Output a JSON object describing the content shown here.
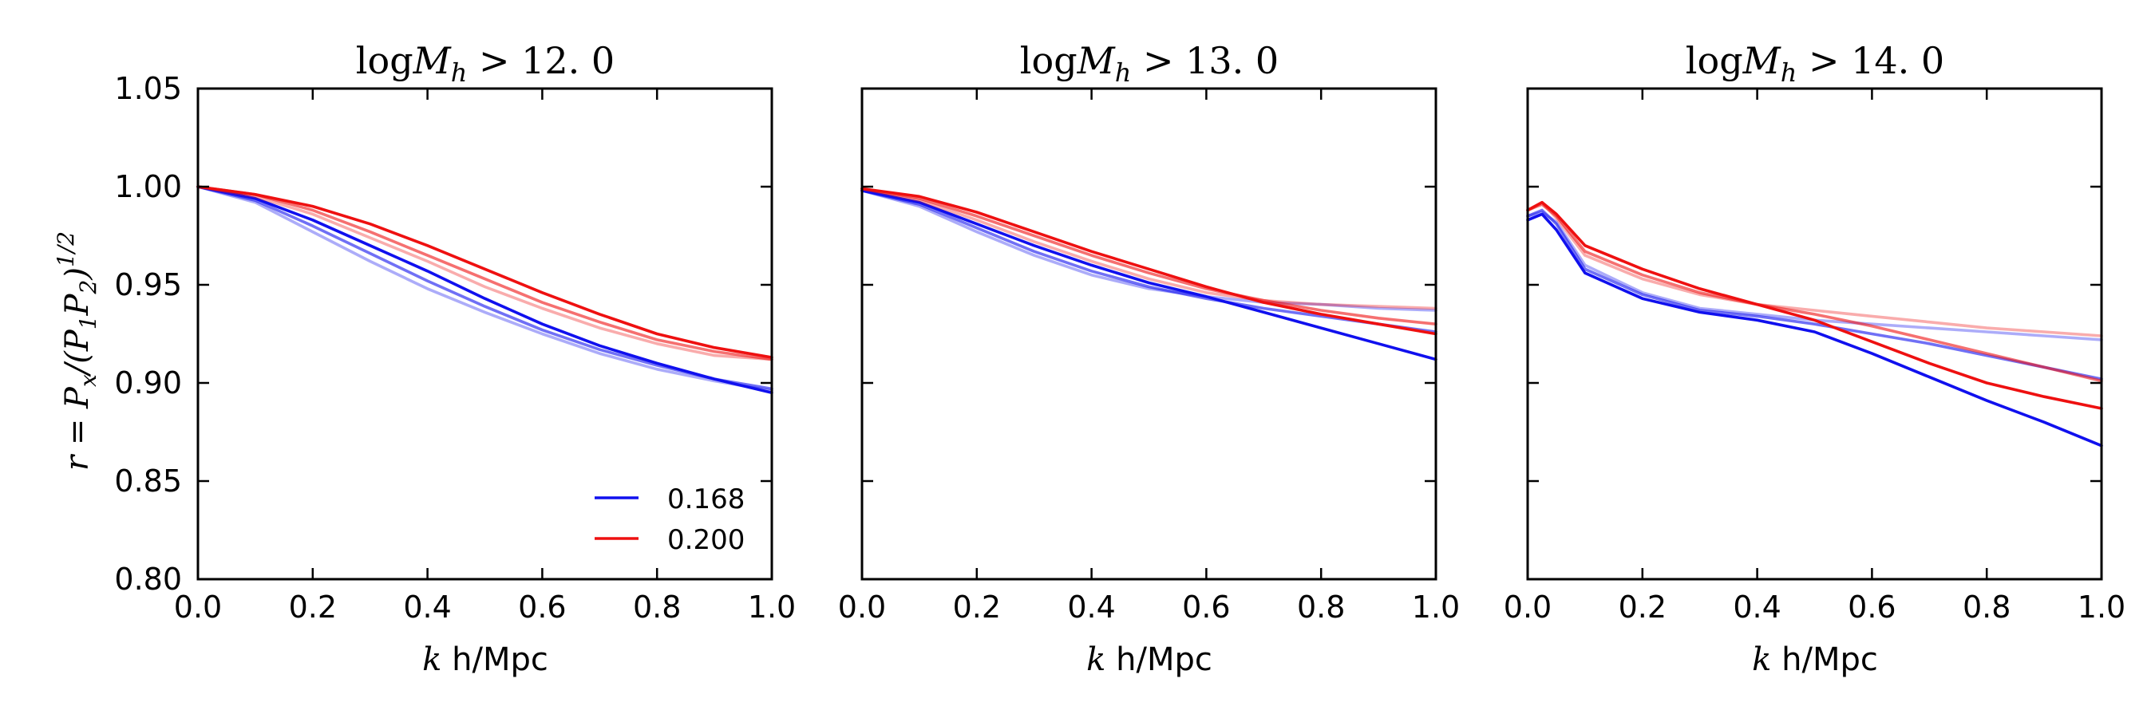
{
  "chart_data": {
    "type": "line",
    "y_axis_label": "r = P_x/(P_1 P_2)^{1/2}",
    "x_axis_label": "k h/Mpc",
    "xlim": [
      0.0,
      1.0
    ],
    "ylim": [
      0.8,
      1.05
    ],
    "x_ticks": [
      "0.0",
      "0.2",
      "0.4",
      "0.6",
      "0.8",
      "1.0"
    ],
    "y_ticks": [
      "0.80",
      "0.85",
      "0.90",
      "0.95",
      "1.00",
      "1.05"
    ],
    "legend": {
      "location": "lower-right of first panel",
      "entries": [
        {
          "label": "0.168",
          "color": "#1010ee"
        },
        {
          "label": "0.200",
          "color": "#ee1010"
        }
      ]
    },
    "colors": {
      "blue": "#1010ee",
      "red": "#ee1010"
    },
    "panels": [
      {
        "title": "log M_h > 12.0",
        "series": [
          {
            "name": "0.168",
            "color": "blue",
            "alpha": 0.35,
            "x": [
              0,
              0.1,
              0.2,
              0.3,
              0.4,
              0.5,
              0.6,
              0.7,
              0.8,
              0.9,
              1.0
            ],
            "y": [
              1.0,
              0.992,
              0.977,
              0.962,
              0.948,
              0.936,
              0.925,
              0.915,
              0.907,
              0.901,
              0.896
            ]
          },
          {
            "name": "0.168",
            "color": "blue",
            "alpha": 0.6,
            "x": [
              0,
              0.1,
              0.2,
              0.3,
              0.4,
              0.5,
              0.6,
              0.7,
              0.8,
              0.9,
              1.0
            ],
            "y": [
              1.0,
              0.993,
              0.98,
              0.966,
              0.952,
              0.939,
              0.927,
              0.917,
              0.909,
              0.902,
              0.897
            ]
          },
          {
            "name": "0.168",
            "color": "blue",
            "alpha": 1.0,
            "x": [
              0,
              0.1,
              0.2,
              0.3,
              0.4,
              0.5,
              0.6,
              0.7,
              0.8,
              0.9,
              1.0
            ],
            "y": [
              1.0,
              0.994,
              0.983,
              0.97,
              0.957,
              0.943,
              0.93,
              0.919,
              0.91,
              0.902,
              0.895
            ]
          },
          {
            "name": "0.200",
            "color": "red",
            "alpha": 0.35,
            "x": [
              0,
              0.1,
              0.2,
              0.3,
              0.4,
              0.5,
              0.6,
              0.7,
              0.8,
              0.9,
              1.0
            ],
            "y": [
              1.0,
              0.995,
              0.986,
              0.974,
              0.962,
              0.949,
              0.938,
              0.928,
              0.92,
              0.914,
              0.912
            ]
          },
          {
            "name": "0.200",
            "color": "red",
            "alpha": 0.6,
            "x": [
              0,
              0.1,
              0.2,
              0.3,
              0.4,
              0.5,
              0.6,
              0.7,
              0.8,
              0.9,
              1.0
            ],
            "y": [
              1.0,
              0.996,
              0.988,
              0.977,
              0.965,
              0.953,
              0.941,
              0.931,
              0.922,
              0.916,
              0.912
            ]
          },
          {
            "name": "0.200",
            "color": "red",
            "alpha": 1.0,
            "x": [
              0,
              0.1,
              0.2,
              0.3,
              0.4,
              0.5,
              0.6,
              0.7,
              0.8,
              0.9,
              1.0
            ],
            "y": [
              1.0,
              0.996,
              0.99,
              0.981,
              0.97,
              0.958,
              0.946,
              0.935,
              0.925,
              0.918,
              0.913
            ]
          }
        ]
      },
      {
        "title": "log M_h > 13.0",
        "series": [
          {
            "name": "0.168",
            "color": "blue",
            "alpha": 0.35,
            "x": [
              0,
              0.1,
              0.2,
              0.3,
              0.4,
              0.5,
              0.6,
              0.7,
              0.8,
              0.9,
              1.0
            ],
            "y": [
              0.998,
              0.99,
              0.977,
              0.965,
              0.955,
              0.948,
              0.944,
              0.941,
              0.94,
              0.938,
              0.937
            ]
          },
          {
            "name": "0.168",
            "color": "blue",
            "alpha": 0.6,
            "x": [
              0,
              0.1,
              0.2,
              0.3,
              0.4,
              0.5,
              0.6,
              0.7,
              0.8,
              0.9,
              1.0
            ],
            "y": [
              0.998,
              0.991,
              0.979,
              0.967,
              0.957,
              0.949,
              0.943,
              0.938,
              0.934,
              0.93,
              0.926
            ]
          },
          {
            "name": "0.168",
            "color": "blue",
            "alpha": 1.0,
            "x": [
              0,
              0.1,
              0.2,
              0.3,
              0.4,
              0.5,
              0.6,
              0.7,
              0.8,
              0.9,
              1.0
            ],
            "y": [
              0.998,
              0.992,
              0.981,
              0.97,
              0.96,
              0.951,
              0.944,
              0.936,
              0.928,
              0.92,
              0.912
            ]
          },
          {
            "name": "0.200",
            "color": "red",
            "alpha": 0.35,
            "x": [
              0,
              0.1,
              0.2,
              0.3,
              0.4,
              0.5,
              0.6,
              0.7,
              0.8,
              0.9,
              1.0
            ],
            "y": [
              0.999,
              0.993,
              0.983,
              0.972,
              0.962,
              0.953,
              0.946,
              0.942,
              0.94,
              0.939,
              0.938
            ]
          },
          {
            "name": "0.200",
            "color": "red",
            "alpha": 0.6,
            "x": [
              0,
              0.1,
              0.2,
              0.3,
              0.4,
              0.5,
              0.6,
              0.7,
              0.8,
              0.9,
              1.0
            ],
            "y": [
              0.999,
              0.994,
              0.985,
              0.975,
              0.965,
              0.956,
              0.948,
              0.942,
              0.937,
              0.933,
              0.93
            ]
          },
          {
            "name": "0.200",
            "color": "red",
            "alpha": 1.0,
            "x": [
              0,
              0.1,
              0.2,
              0.3,
              0.4,
              0.5,
              0.6,
              0.7,
              0.8,
              0.9,
              1.0
            ],
            "y": [
              0.999,
              0.995,
              0.987,
              0.977,
              0.967,
              0.958,
              0.949,
              0.941,
              0.935,
              0.93,
              0.925
            ]
          }
        ]
      },
      {
        "title": "log M_h > 14.0",
        "series": [
          {
            "name": "0.168",
            "color": "blue",
            "alpha": 0.35,
            "x": [
              0,
              0.025,
              0.05,
              0.1,
              0.2,
              0.3,
              0.4,
              0.5,
              0.6,
              0.7,
              0.8,
              0.9,
              1.0
            ],
            "y": [
              0.985,
              0.987,
              0.982,
              0.96,
              0.946,
              0.938,
              0.935,
              0.932,
              0.93,
              0.928,
              0.926,
              0.924,
              0.922
            ]
          },
          {
            "name": "0.168",
            "color": "blue",
            "alpha": 0.6,
            "x": [
              0,
              0.025,
              0.05,
              0.1,
              0.2,
              0.3,
              0.4,
              0.5,
              0.6,
              0.7,
              0.8,
              0.9,
              1.0
            ],
            "y": [
              0.985,
              0.988,
              0.981,
              0.958,
              0.945,
              0.937,
              0.934,
              0.93,
              0.925,
              0.92,
              0.914,
              0.908,
              0.902
            ]
          },
          {
            "name": "0.168",
            "color": "blue",
            "alpha": 1.0,
            "x": [
              0,
              0.025,
              0.05,
              0.1,
              0.2,
              0.3,
              0.4,
              0.5,
              0.6,
              0.7,
              0.8,
              0.9,
              1.0
            ],
            "y": [
              0.983,
              0.986,
              0.978,
              0.956,
              0.943,
              0.936,
              0.932,
              0.926,
              0.915,
              0.903,
              0.891,
              0.88,
              0.868
            ]
          },
          {
            "name": "0.200",
            "color": "red",
            "alpha": 0.35,
            "x": [
              0,
              0.025,
              0.05,
              0.1,
              0.2,
              0.3,
              0.4,
              0.5,
              0.6,
              0.7,
              0.8,
              0.9,
              1.0
            ],
            "y": [
              0.988,
              0.992,
              0.984,
              0.965,
              0.953,
              0.945,
              0.94,
              0.937,
              0.934,
              0.931,
              0.928,
              0.926,
              0.924
            ]
          },
          {
            "name": "0.200",
            "color": "red",
            "alpha": 0.6,
            "x": [
              0,
              0.025,
              0.05,
              0.1,
              0.2,
              0.3,
              0.4,
              0.5,
              0.6,
              0.7,
              0.8,
              0.9,
              1.0
            ],
            "y": [
              0.988,
              0.991,
              0.985,
              0.967,
              0.955,
              0.946,
              0.94,
              0.935,
              0.929,
              0.922,
              0.915,
              0.908,
              0.901
            ]
          },
          {
            "name": "0.200",
            "color": "red",
            "alpha": 1.0,
            "x": [
              0,
              0.025,
              0.05,
              0.1,
              0.2,
              0.3,
              0.4,
              0.5,
              0.6,
              0.7,
              0.8,
              0.9,
              1.0
            ],
            "y": [
              0.988,
              0.992,
              0.986,
              0.97,
              0.958,
              0.948,
              0.94,
              0.932,
              0.921,
              0.91,
              0.9,
              0.893,
              0.887
            ]
          }
        ]
      }
    ]
  }
}
